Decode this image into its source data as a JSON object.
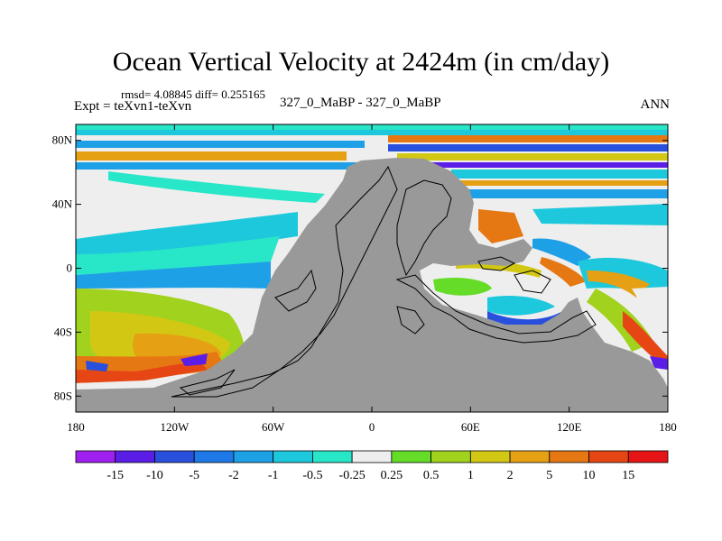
{
  "title": "Ocean Vertical Velocity at 2424m (in cm/day)",
  "stats_line": "rmsd= 4.08845 diff= 0.255165",
  "experiment_line": "Expt = teXvn1-teXvn",
  "comparison_line": "327_0_MaBP - 327_0_MaBP",
  "season": "ANN",
  "lat_ticks": [
    "80N",
    "40N",
    "0",
    "40S",
    "80S"
  ],
  "lat_values": [
    80,
    40,
    0,
    -40,
    -80
  ],
  "lon_ticks": [
    "180",
    "120W",
    "60W",
    "0",
    "60E",
    "120E",
    "180"
  ],
  "lon_values": [
    -180,
    -120,
    -60,
    0,
    60,
    120,
    180
  ],
  "colorbar": {
    "labels": [
      "-15",
      "-10",
      "-5",
      "-2",
      "-1",
      "-0.5",
      "-0.25",
      "0.25",
      "0.5",
      "1",
      "2",
      "5",
      "10",
      "15"
    ],
    "colors": [
      "#a020f0",
      "#5a1ee6",
      "#2850dc",
      "#1e78e6",
      "#1ea0e6",
      "#1ec8dc",
      "#28e6c8",
      "#eeeeee",
      "#64dc28",
      "#a0d21e",
      "#d2c814",
      "#e6a014",
      "#e67814",
      "#e64614",
      "#e61414"
    ]
  },
  "land_color": "#999999"
}
